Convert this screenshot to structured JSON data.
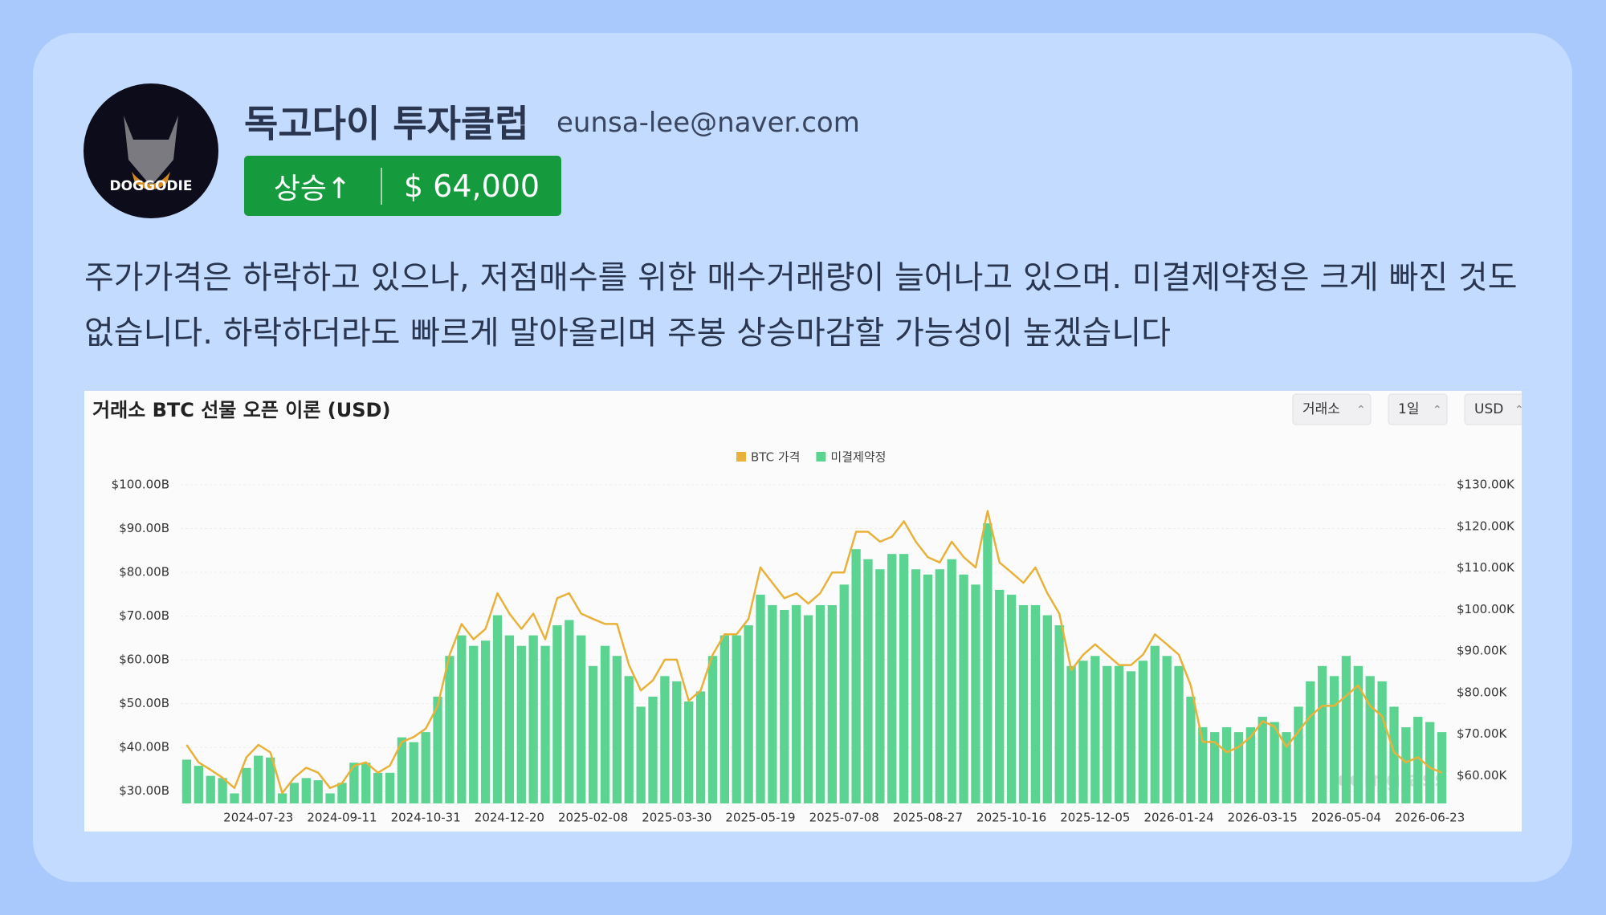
{
  "profile": {
    "name": "독고다이 투자클럽",
    "email": "eunsa-lee@naver.com",
    "avatar_text": "DOGGODIE",
    "signal": "상승↑",
    "price": "$ 64,000"
  },
  "post": {
    "text": "주가가격은 하락하고 있으나, 저점매수를 위한 매수거래량이 늘어나고 있으며. 미결제약정은 크게 빠진 것도 없습니다. 하락하더라도 빠르게 말아올리며 주봉 상승마감할 가능성이 높겠습니다"
  },
  "chart_data": {
    "type": "bar",
    "title": "거래소 BTC 선물 오픈 이론 (USD)",
    "controls": [
      "거래소",
      "1일",
      "USD"
    ],
    "watermark": "coinglass",
    "categories": [
      null,
      null,
      null,
      null,
      null,
      null,
      "2024-07-23",
      null,
      null,
      null,
      null,
      null,
      null,
      "2024-09-11",
      null,
      null,
      null,
      null,
      null,
      null,
      "2024-10-31",
      null,
      null,
      null,
      null,
      null,
      null,
      "2024-12-20",
      null,
      null,
      null,
      null,
      null,
      null,
      "2025-02-08",
      null,
      null,
      null,
      null,
      null,
      null,
      "2025-03-30",
      null,
      null,
      null,
      null,
      null,
      null,
      "2025-05-19",
      null,
      null,
      null,
      null,
      null,
      null,
      "2025-07-08",
      null,
      null,
      null,
      null,
      null,
      null,
      "2025-08-27",
      null,
      null,
      null,
      null,
      null,
      null,
      "2025-10-16",
      null,
      null,
      null,
      null,
      null,
      null,
      "2025-12-05",
      null,
      null,
      null,
      null,
      null,
      null,
      "2026-01-24",
      null,
      null,
      null,
      null,
      null,
      null,
      "2026-03-15",
      null,
      null,
      null,
      null,
      null,
      null,
      "2026-05-04",
      null,
      null,
      null,
      null,
      null,
      null,
      "2026-06-23",
      null
    ],
    "series": [
      {
        "name": "BTC 가격",
        "type": "line",
        "axis": "y2",
        "color": "#e8b23a",
        "values": [
          67.4,
          63.2,
          61.4,
          59.5,
          57.0,
          64.4,
          67.4,
          65.6,
          55.8,
          59.5,
          61.9,
          60.7,
          57.0,
          58.2,
          62.4,
          63.2,
          60.7,
          62.4,
          68.1,
          69.3,
          71.3,
          76.8,
          89.1,
          96.5,
          92.8,
          95.3,
          103.9,
          99.0,
          95.3,
          99.0,
          92.8,
          102.7,
          103.9,
          99.0,
          97.7,
          96.5,
          96.5,
          86.6,
          80.5,
          82.9,
          87.9,
          87.9,
          78.0,
          80.5,
          89.1,
          94.0,
          94.0,
          97.7,
          110.1,
          106.4,
          102.7,
          103.9,
          101.4,
          103.9,
          108.9,
          108.9,
          118.7,
          118.7,
          116.3,
          117.5,
          121.2,
          116.3,
          112.6,
          111.3,
          116.3,
          112.6,
          110.1,
          123.7,
          111.3,
          108.9,
          106.4,
          110.1,
          103.9,
          99.0,
          85.4,
          89.1,
          91.6,
          89.1,
          86.6,
          86.6,
          89.1,
          94.0,
          91.6,
          89.1,
          81.7,
          68.1,
          68.1,
          65.6,
          66.9,
          69.3,
          73.1,
          71.8,
          66.9,
          70.6,
          74.3,
          76.8,
          76.8,
          79.2,
          81.7,
          76.8,
          74.3,
          65.6,
          63.2,
          64.4,
          61.9,
          60.7
        ]
      },
      {
        "name": "미결제약정",
        "color": "#5cd491",
        "values": [
          37.2,
          35.8,
          33.5,
          33.0,
          29.5,
          35.3,
          38.1,
          37.7,
          29.5,
          31.9,
          33.0,
          32.5,
          29.5,
          31.9,
          36.5,
          36.5,
          34.2,
          34.2,
          42.3,
          41.2,
          43.5,
          51.6,
          60.9,
          65.6,
          63.2,
          64.4,
          70.2,
          65.6,
          63.2,
          65.6,
          63.2,
          67.9,
          69.1,
          65.6,
          58.6,
          63.2,
          60.9,
          56.3,
          49.3,
          51.6,
          56.3,
          55.1,
          50.5,
          52.8,
          60.9,
          65.6,
          65.6,
          67.9,
          74.9,
          72.5,
          71.4,
          72.5,
          70.2,
          72.5,
          72.5,
          77.2,
          85.3,
          83.0,
          80.7,
          84.2,
          84.2,
          80.7,
          79.5,
          80.7,
          83.0,
          79.5,
          77.2,
          91.2,
          76.0,
          74.9,
          72.5,
          72.5,
          70.2,
          67.9,
          58.6,
          59.8,
          60.9,
          58.6,
          58.6,
          57.4,
          59.8,
          63.2,
          60.9,
          58.6,
          51.6,
          44.6,
          43.5,
          44.6,
          43.5,
          44.6,
          47.0,
          45.8,
          43.5,
          49.3,
          55.1,
          58.6,
          56.3,
          60.9,
          58.6,
          56.3,
          55.1,
          49.3,
          44.6,
          47.0,
          45.8,
          43.5
        ]
      }
    ],
    "ylim": [
      27.2,
      100
    ],
    "yticks": [
      {
        "value": 30,
        "label": "$30.00B"
      },
      {
        "value": 40,
        "label": "$40.00B"
      },
      {
        "value": 50,
        "label": "$50.00B"
      },
      {
        "value": 60,
        "label": "$60.00B"
      },
      {
        "value": 70,
        "label": "$70.00B"
      },
      {
        "value": 80,
        "label": "$80.00B"
      },
      {
        "value": 90,
        "label": "$90.00B"
      },
      {
        "value": 100,
        "label": "$100.00B"
      }
    ],
    "y2lim": [
      53.3,
      130
    ],
    "y2ticks": [
      {
        "value": 60,
        "label": "$60.00K"
      },
      {
        "value": 70,
        "label": "$70.00K"
      },
      {
        "value": 80,
        "label": "$80.00K"
      },
      {
        "value": 90,
        "label": "$90.00K"
      },
      {
        "value": 100,
        "label": "$100.00K"
      },
      {
        "value": 110,
        "label": "$110.00K"
      },
      {
        "value": 120,
        "label": "$120.00K"
      },
      {
        "value": 130,
        "label": "$130.00K"
      }
    ],
    "grid": true,
    "legend": "top"
  }
}
